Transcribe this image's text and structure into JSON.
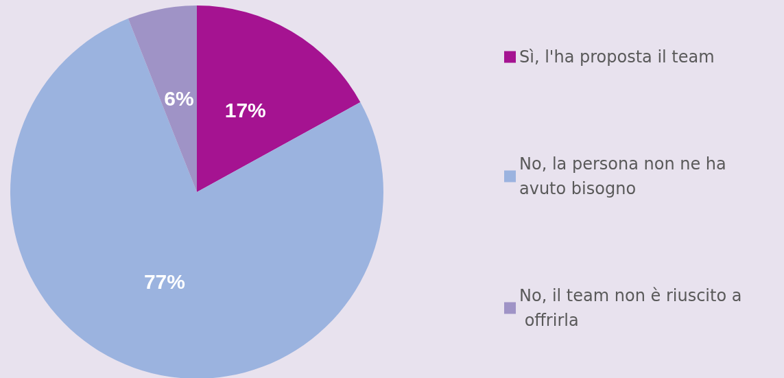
{
  "chart_data": {
    "type": "pie",
    "categories": [
      "Sì, l'ha proposta il team",
      "No, la persona non ne ha avuto bisogno",
      "No, il team non è riuscito a offrirla"
    ],
    "values": [
      17,
      77,
      6
    ],
    "colors": [
      "#a51391",
      "#9bb3df",
      "#9f93c6"
    ],
    "value_labels": [
      "17%",
      "77%",
      "6%"
    ],
    "legend": "right"
  }
}
